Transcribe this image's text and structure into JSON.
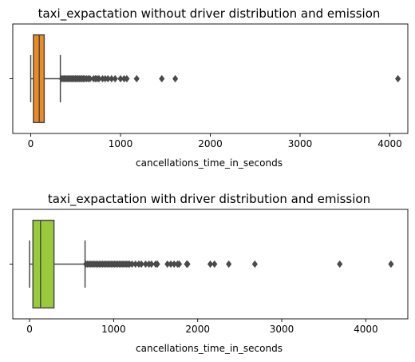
{
  "chart_data": [
    {
      "type": "box",
      "title": "taxi_expactation without driver distribution and emission",
      "xlabel": "cancellations_time_in_seconds",
      "ylabel": "",
      "y_tick_labels": [
        ""
      ],
      "xlim": [
        -200,
        4200
      ],
      "x_ticks": [
        0,
        1000,
        2000,
        3000,
        4000
      ],
      "x_tick_labels": [
        "0",
        "1000",
        "2000",
        "3000",
        "4000"
      ],
      "box_color": "#ee8a22",
      "grid": false,
      "box": {
        "whisker_low": 0,
        "q1": 30,
        "median": 95,
        "q3": 150,
        "whisker_high": 330
      },
      "outliers": [
        345,
        360,
        375,
        390,
        405,
        420,
        435,
        450,
        465,
        480,
        495,
        510,
        525,
        540,
        555,
        570,
        585,
        600,
        620,
        640,
        660,
        700,
        720,
        740,
        760,
        800,
        830,
        860,
        900,
        940,
        1000,
        1040,
        1070,
        1180,
        1460,
        1610,
        4090
      ]
    },
    {
      "type": "box",
      "title": "taxi_expactation with driver distribution and emission",
      "xlabel": "cancellations_time_in_seconds",
      "ylabel": "",
      "y_tick_labels": [
        ""
      ],
      "xlim": [
        -200,
        4500
      ],
      "x_ticks": [
        0,
        1000,
        2000,
        3000,
        4000
      ],
      "x_tick_labels": [
        "0",
        "1000",
        "2000",
        "3000",
        "4000"
      ],
      "box_color": "#9aca3c",
      "grid": false,
      "box": {
        "whisker_low": 0,
        "q1": 40,
        "median": 130,
        "q3": 290,
        "whisker_high": 660
      },
      "outliers": [
        670,
        690,
        710,
        730,
        750,
        770,
        790,
        810,
        830,
        850,
        870,
        890,
        910,
        930,
        950,
        970,
        990,
        1010,
        1030,
        1050,
        1070,
        1090,
        1110,
        1130,
        1150,
        1170,
        1190,
        1220,
        1260,
        1300,
        1330,
        1380,
        1420,
        1450,
        1500,
        1520,
        1640,
        1680,
        1720,
        1760,
        1780,
        1870,
        1880,
        2150,
        2200,
        2370,
        2680,
        3690,
        4300
      ]
    }
  ]
}
